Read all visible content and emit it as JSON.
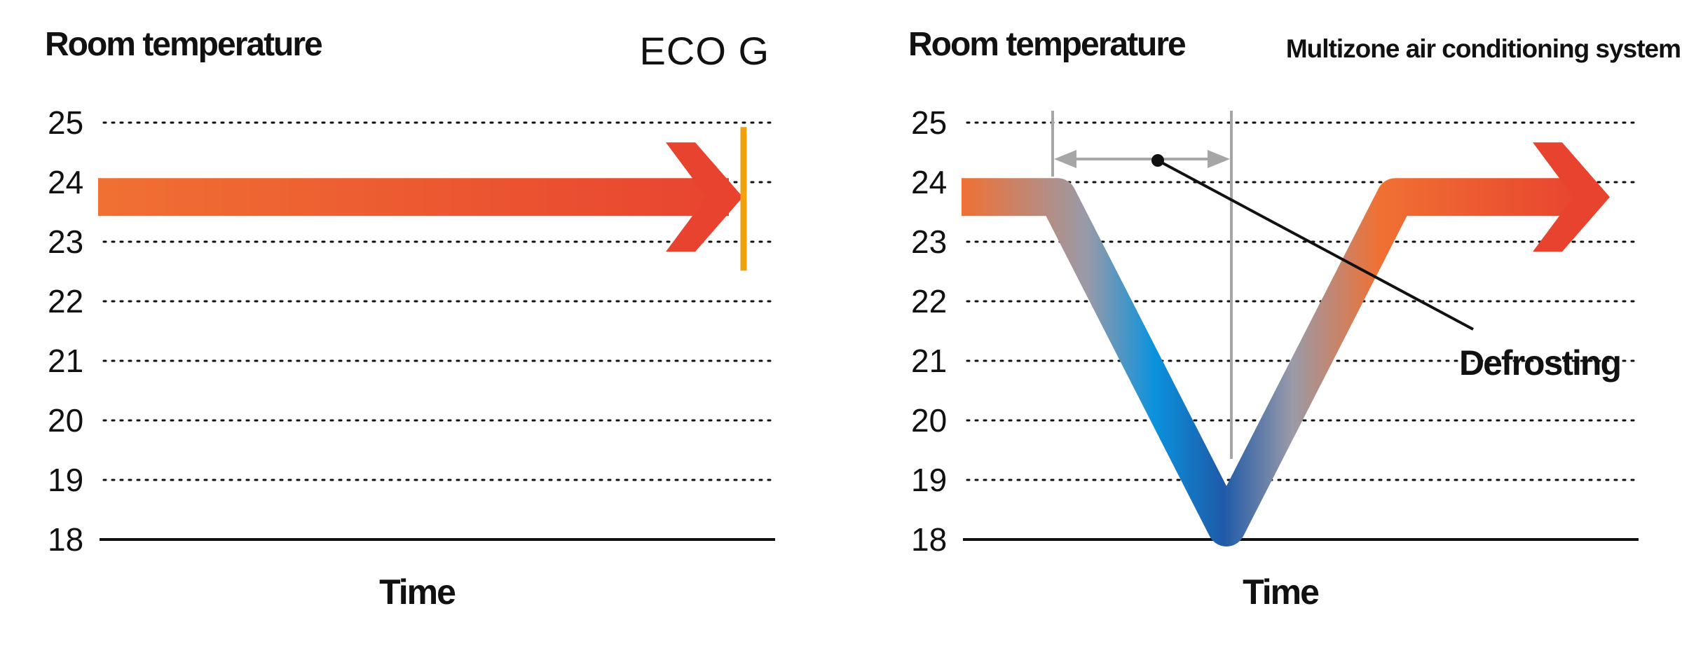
{
  "colors": {
    "warm": "#e8432f",
    "warm_light": "#f07033",
    "cold": "#0a92dd",
    "cold_dark": "#1f5aa8",
    "neutral": "#9a9aa8",
    "eco_marker": "#f2a20c",
    "guide": "#a6a6a6",
    "text": "#111111"
  },
  "chart_data": [
    {
      "type": "line",
      "title": "ECO G",
      "ylabel": "Room temperature",
      "xlabel": "Time",
      "ylim": [
        18,
        25
      ],
      "yticks": [
        "25",
        "24",
        "23",
        "22",
        "21",
        "20",
        "19",
        "18"
      ],
      "grid": true,
      "series": [
        {
          "values": [
            23.75,
            23.75
          ]
        }
      ],
      "end_marker": "ECO G"
    },
    {
      "type": "line",
      "title": "Multizone air conditioning system",
      "ylabel": "Room temperature",
      "xlabel": "Time",
      "ylim": [
        18,
        25
      ],
      "yticks": [
        "25",
        "24",
        "23",
        "22",
        "21",
        "20",
        "19",
        "18"
      ],
      "grid": true,
      "series": [
        {
          "values": [
            23.75,
            23.75,
            18.2,
            23.75,
            23.75
          ]
        }
      ],
      "annotation": "Defrosting"
    }
  ]
}
